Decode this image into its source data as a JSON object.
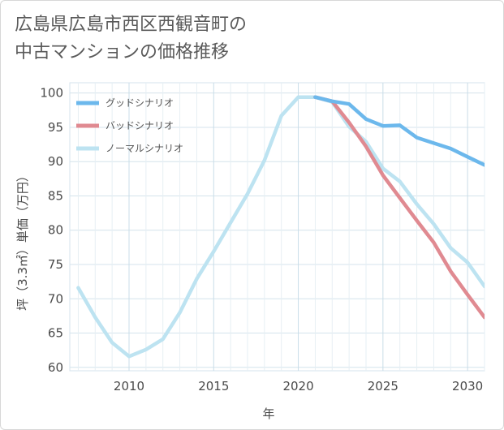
{
  "title_line1": "広島県広島市西区西観音町の",
  "title_line2": "中古マンションの価格推移",
  "chart_data": {
    "type": "line",
    "xlabel": "年",
    "ylabel": "坪（3.3㎡）単価（万円）",
    "xlim": [
      2006.5,
      2031
    ],
    "ylim": [
      59.5,
      101.5
    ],
    "xticks": [
      2010,
      2015,
      2020,
      2025,
      2030
    ],
    "yticks": [
      60,
      65,
      70,
      75,
      80,
      85,
      90,
      95,
      100
    ],
    "grid": true,
    "legend_position": "top-left",
    "series": [
      {
        "name": "グッドシナリオ",
        "color": "#6cb8ec",
        "x": [
          2021,
          2022,
          2023,
          2024,
          2025,
          2026,
          2027,
          2028,
          2029,
          2030,
          2031
        ],
        "y": [
          99.4,
          98.8,
          98.4,
          96.2,
          95.2,
          95.3,
          93.5,
          92.7,
          91.9,
          90.7,
          89.5
        ]
      },
      {
        "name": "バッドシナリオ",
        "color": "#e08a91",
        "x": [
          2021,
          2022,
          2023,
          2024,
          2025,
          2026,
          2027,
          2028,
          2029,
          2030,
          2031
        ],
        "y": [
          99.4,
          98.8,
          95.7,
          92.2,
          88.0,
          84.7,
          81.4,
          78.2,
          74.0,
          70.6,
          67.3
        ]
      },
      {
        "name": "ノーマルシナリオ",
        "color": "#bde3f1",
        "x": [
          2007,
          2008,
          2009,
          2010,
          2011,
          2012,
          2013,
          2014,
          2015,
          2016,
          2017,
          2018,
          2019,
          2020,
          2021,
          2022,
          2023,
          2024,
          2025,
          2026,
          2027,
          2028,
          2029,
          2030,
          2031
        ],
        "y": [
          71.6,
          67.3,
          63.6,
          61.6,
          62.6,
          64.1,
          68.0,
          72.9,
          76.9,
          81.1,
          85.3,
          90.2,
          96.7,
          99.4,
          99.4,
          98.7,
          95.1,
          92.9,
          89.0,
          87.1,
          83.8,
          80.9,
          77.4,
          75.3,
          71.8
        ]
      }
    ]
  }
}
